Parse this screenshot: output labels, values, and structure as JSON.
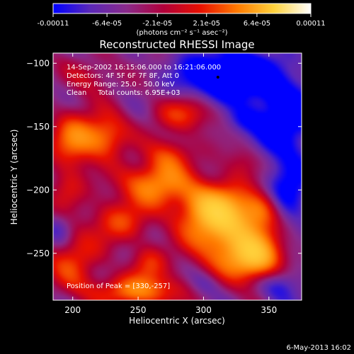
{
  "colorbar": {
    "tick_labels": [
      "-0.00011",
      "-6.4e-05",
      "-2.1e-05",
      "2.1e-05",
      "6.4e-05",
      "0.00011"
    ],
    "tick_values": [
      -0.00011,
      -6.4e-05,
      -2.1e-05,
      2.1e-05,
      6.4e-05,
      0.00011
    ],
    "range": [
      -0.00011,
      0.00011
    ],
    "unit_label": "(photons cm⁻² s⁻¹ asec⁻²)",
    "colors": [
      "#0000ff",
      "#5a28b8",
      "#8a2a8a",
      "#b0003a",
      "#e81000",
      "#ff7a00",
      "#ffd23c",
      "#ffffff"
    ]
  },
  "chart_data": {
    "type": "heatmap",
    "title": "Reconstructed RHESSI Image",
    "xlabel": "Heliocentric X (arcsec)",
    "ylabel": "Heliocentric Y (arcsec)",
    "xlim": [
      185,
      375
    ],
    "ylim": [
      -287,
      -92
    ],
    "x_ticks": [
      200,
      250,
      300,
      350
    ],
    "y_ticks": [
      -100,
      -150,
      -200,
      -250
    ],
    "annotations": [
      "14-Sep-2002 16:15:06.000 to 16:21:06.000",
      "Detectors: 4F 5F 6F 7F 8F, Att 0",
      "Energy Range: 25.0 - 50.0 keV",
      "Clean     Total counts: 6.95E+03"
    ],
    "peak_label": "Position of Peak = [330,-257]",
    "peak": [
      330,
      -257
    ],
    "marker": [
      311,
      -111
    ],
    "sources": [
      {
        "x": 320,
        "y": -235,
        "sx": 22,
        "sy": 20,
        "a": 1.0
      },
      {
        "x": 305,
        "y": -213,
        "sx": 18,
        "sy": 14,
        "a": 0.85
      },
      {
        "x": 262,
        "y": -195,
        "sx": 18,
        "sy": 12,
        "a": 0.85
      },
      {
        "x": 340,
        "y": -255,
        "sx": 14,
        "sy": 12,
        "a": 0.9
      },
      {
        "x": 225,
        "y": -158,
        "sx": 12,
        "sy": 12,
        "a": 0.75
      },
      {
        "x": 200,
        "y": -160,
        "sx": 12,
        "sy": 16,
        "a": 0.7
      },
      {
        "x": 250,
        "y": -280,
        "sx": 26,
        "sy": 9,
        "a": 0.75
      },
      {
        "x": 200,
        "y": -255,
        "sx": 14,
        "sy": 16,
        "a": 0.55
      },
      {
        "x": 235,
        "y": -225,
        "sx": 16,
        "sy": 12,
        "a": 0.55
      },
      {
        "x": 285,
        "y": -140,
        "sx": 18,
        "sy": 10,
        "a": 0.5
      },
      {
        "x": 258,
        "y": -258,
        "sx": 10,
        "sy": 10,
        "a": 0.45
      },
      {
        "x": 345,
        "y": -215,
        "sx": 10,
        "sy": 10,
        "a": 0.5
      },
      {
        "x": 275,
        "y": -172,
        "sx": 12,
        "sy": 10,
        "a": 0.5
      },
      {
        "x": 195,
        "y": -200,
        "sx": 10,
        "sy": 12,
        "a": 0.4
      },
      {
        "x": 330,
        "y": -178,
        "sx": 10,
        "sy": 10,
        "a": 0.3
      },
      {
        "x": 215,
        "y": -110,
        "sx": 14,
        "sy": 10,
        "a": 0.3
      },
      {
        "x": 320,
        "y": -110,
        "sx": 26,
        "sy": 14,
        "a": -0.9
      },
      {
        "x": 362,
        "y": -145,
        "sx": 16,
        "sy": 24,
        "a": -0.7
      },
      {
        "x": 365,
        "y": -205,
        "sx": 12,
        "sy": 16,
        "a": -0.55
      },
      {
        "x": 330,
        "y": -145,
        "sx": 10,
        "sy": 8,
        "a": -0.35
      },
      {
        "x": 360,
        "y": -275,
        "sx": 12,
        "sy": 10,
        "a": -0.4
      },
      {
        "x": 190,
        "y": -230,
        "sx": 8,
        "sy": 10,
        "a": -0.3
      },
      {
        "x": 300,
        "y": -275,
        "sx": 10,
        "sy": 8,
        "a": -0.3
      }
    ]
  },
  "footer": {
    "date": "6-May-2013 16:02"
  }
}
